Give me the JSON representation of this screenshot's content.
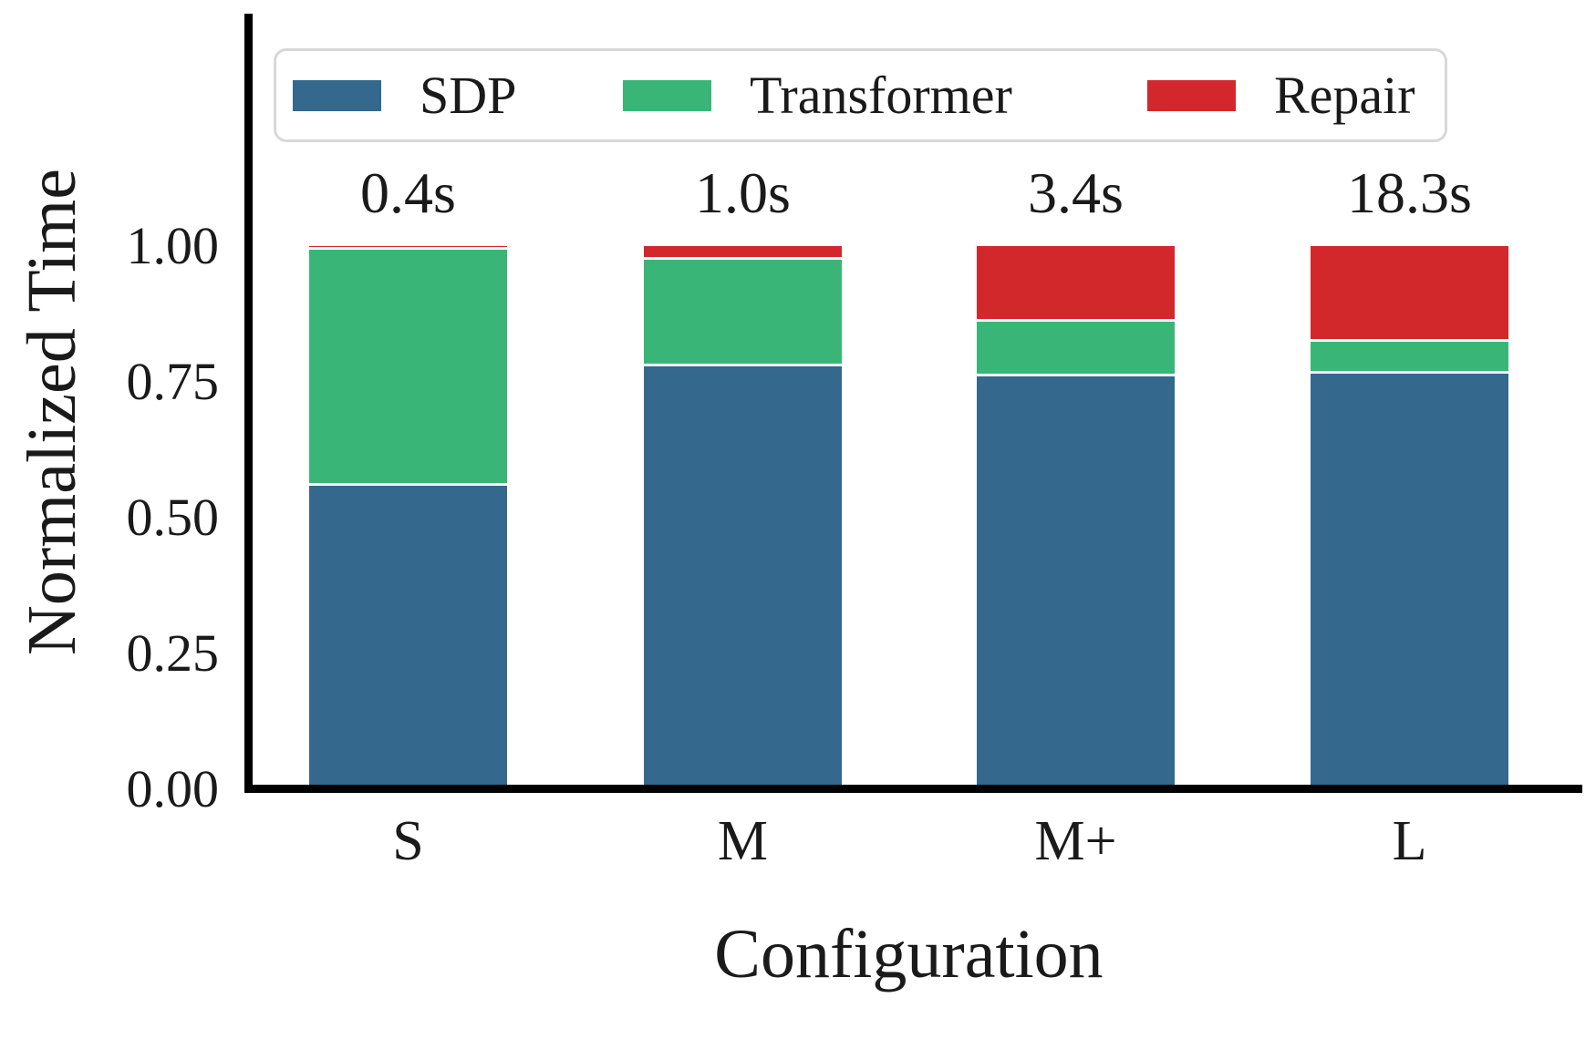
{
  "chart_data": {
    "type": "bar",
    "variant": "stacked",
    "title": "",
    "xlabel": "Configuration",
    "ylabel": "Normalized Time",
    "categories": [
      "S",
      "M",
      "M+",
      "L"
    ],
    "bar_annotations": [
      "0.4s",
      "1.0s",
      "3.4s",
      "18.3s"
    ],
    "series": [
      {
        "name": "SDP",
        "color": "#34688c",
        "values": [
          0.561,
          0.781,
          0.762,
          0.768
        ]
      },
      {
        "name": "Transformer",
        "color": "#39b677",
        "values": [
          0.434,
          0.196,
          0.102,
          0.059
        ]
      },
      {
        "name": "Repair",
        "color": "#d2282c",
        "values": [
          0.005,
          0.023,
          0.136,
          0.173
        ]
      }
    ],
    "yticks": [
      "0.00",
      "0.25",
      "0.50",
      "0.75",
      "1.00"
    ],
    "ylim": [
      0,
      1.0
    ],
    "grid": false,
    "legend": {
      "position": "upper center",
      "labels": [
        "SDP",
        "Transformer",
        "Repair"
      ]
    },
    "bar_edge_color": "#ffffff",
    "axis_color": "#000000"
  }
}
